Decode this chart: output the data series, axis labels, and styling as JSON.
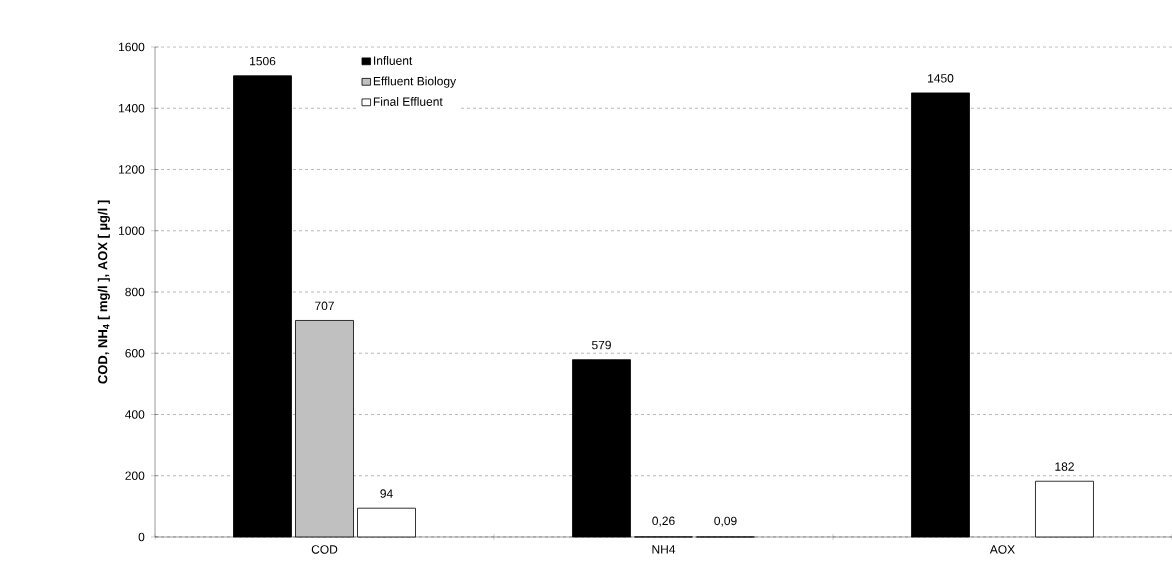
{
  "chart_data": {
    "type": "bar",
    "ylabel": "COD, NH$_{4}$ [ mg/l ], AOX [ µg/l ]",
    "categories": [
      "COD",
      "NH4",
      "AOX"
    ],
    "series": [
      {
        "name": "Influent",
        "color": "#000000",
        "values": [
          1506,
          579,
          1450
        ],
        "value_labels": [
          "1506",
          "579",
          "1450"
        ]
      },
      {
        "name": "Effluent Biology",
        "color": "#c0c0c0",
        "values": [
          707,
          0.26,
          null
        ],
        "value_labels": [
          "707",
          "0,26",
          null
        ]
      },
      {
        "name": "Final Effluent",
        "color": "#ffffff",
        "values": [
          94,
          0.09,
          182
        ],
        "value_labels": [
          "94",
          "0,09",
          "182"
        ]
      }
    ],
    "ylim": [
      0,
      1600
    ],
    "yticks": [
      0,
      200,
      400,
      600,
      800,
      1000,
      1200,
      1400,
      1600
    ],
    "grid": "y",
    "legend": "top left"
  }
}
